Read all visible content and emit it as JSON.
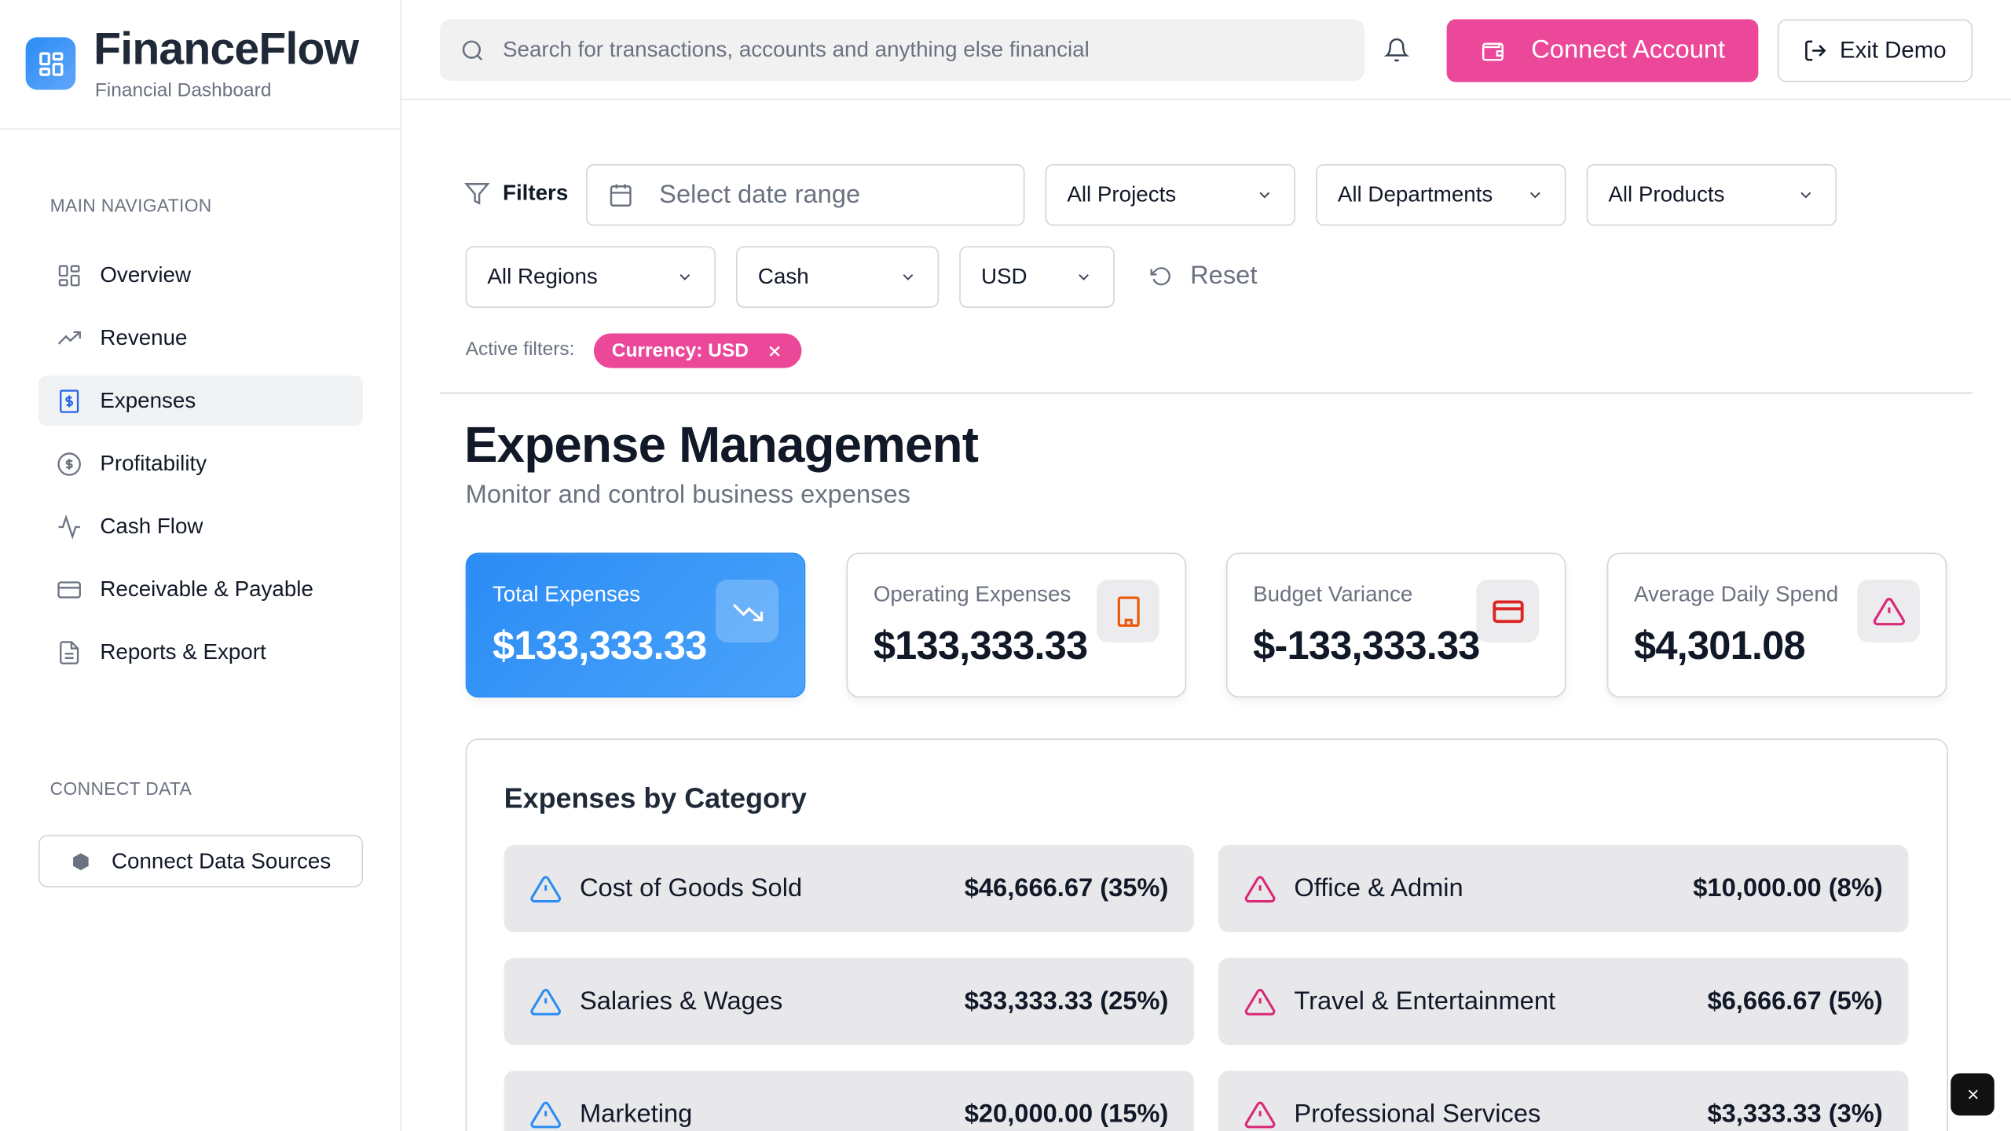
{
  "app": {
    "title": "FinanceFlow",
    "subtitle": "Financial Dashboard"
  },
  "sidebar": {
    "main_heading": "MAIN NAVIGATION",
    "items": [
      {
        "label": "Overview",
        "icon": "grid-icon"
      },
      {
        "label": "Revenue",
        "icon": "trending-up-icon"
      },
      {
        "label": "Expenses",
        "icon": "receipt-dollar-icon",
        "active": true
      },
      {
        "label": "Profitability",
        "icon": "dollar-circle-icon"
      },
      {
        "label": "Cash Flow",
        "icon": "activity-icon"
      },
      {
        "label": "Receivable & Payable",
        "icon": "credit-card-icon"
      },
      {
        "label": "Reports & Export",
        "icon": "file-text-icon"
      }
    ],
    "connect_heading": "CONNECT DATA",
    "connect_button": "Connect Data Sources"
  },
  "header": {
    "search_placeholder": "Search for transactions, accounts and anything else financial",
    "connect_account": "Connect Account",
    "exit_demo": "Exit Demo"
  },
  "filters": {
    "label": "Filters",
    "date_placeholder": "Select date range",
    "projects": "All Projects",
    "departments": "All Departments",
    "products": "All Products",
    "regions": "All Regions",
    "account_type": "Cash",
    "currency": "USD",
    "reset": "Reset",
    "active_label": "Active filters:",
    "active_chip": "Currency: USD"
  },
  "page": {
    "title": "Expense Management",
    "subtitle": "Monitor and control business expenses"
  },
  "cards": [
    {
      "label": "Total Expenses",
      "value": "$133,333.33",
      "icon": "trending-down-icon"
    },
    {
      "label": "Operating Expenses",
      "value": "$133,333.33",
      "icon": "building-icon",
      "color": "#ea580c"
    },
    {
      "label": "Budget Variance",
      "value": "$-133,333.33",
      "icon": "credit-card-icon",
      "color": "#dc2626"
    },
    {
      "label": "Average Daily Spend",
      "value": "$4,301.08",
      "icon": "alert-triangle-icon",
      "color": "#db2777"
    }
  ],
  "categories": {
    "title": "Expenses by Category",
    "items": [
      {
        "name": "Cost of Goods Sold",
        "amount": "$46,666.67 (35%)",
        "color": "#2b8cf5"
      },
      {
        "name": "Office & Admin",
        "amount": "$10,000.00 (8%)",
        "color": "#db2777"
      },
      {
        "name": "Salaries & Wages",
        "amount": "$33,333.33 (25%)",
        "color": "#2b8cf5"
      },
      {
        "name": "Travel & Entertainment",
        "amount": "$6,666.67 (5%)",
        "color": "#db2777"
      },
      {
        "name": "Marketing",
        "amount": "$20,000.00 (15%)",
        "color": "#2b8cf5"
      },
      {
        "name": "Professional Services",
        "amount": "$3,333.33 (3%)",
        "color": "#db2777"
      }
    ]
  },
  "colors": {
    "accent": "#2b8cf5",
    "brand_pink": "#ec4899"
  }
}
